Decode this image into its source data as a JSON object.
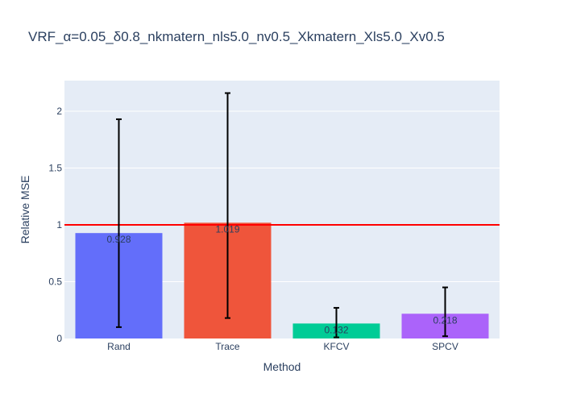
{
  "chart_data": {
    "type": "bar",
    "title": "VRF_α=0.05_δ0.8_nkmatern_nls5.0_nv0.5_Xkmatern_Xls5.0_Xv0.5",
    "xlabel": "Method",
    "ylabel": "Relative MSE",
    "categories": [
      "Rand",
      "Trace",
      "KFCV",
      "SPCV"
    ],
    "values": [
      0.928,
      1.019,
      0.132,
      0.218
    ],
    "value_labels": [
      "0.928",
      "1.019",
      "0.132",
      "0.218"
    ],
    "error_low": [
      0.1,
      0.18,
      0.01,
      0.02
    ],
    "error_high": [
      1.93,
      2.16,
      0.27,
      0.45
    ],
    "colors": [
      "#636efa",
      "#ef553b",
      "#00cc96",
      "#ab63fa"
    ],
    "ylim": [
      0,
      2.27
    ],
    "yticks": [
      0,
      0.5,
      1,
      1.5,
      2
    ],
    "ytick_labels": [
      "0",
      "0.5",
      "1",
      "1.5",
      "2"
    ],
    "reference_line": {
      "y": 1,
      "color": "#ff0000"
    },
    "grid": true,
    "plot_background": "#e5ecf6",
    "error_bar_color": "#000000"
  }
}
